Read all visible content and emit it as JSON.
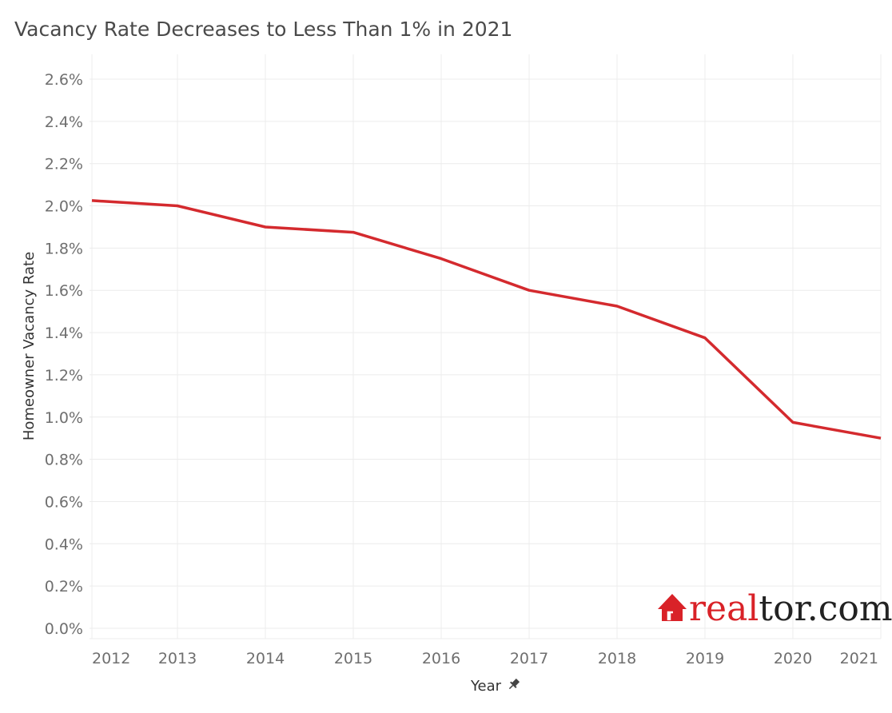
{
  "title": "Vacancy Rate Decreases to Less Than 1% in 2021",
  "brand": {
    "text_a": "real",
    "text_b": "tor.com",
    "accent": "#d92228",
    "dark": "#222222"
  },
  "colors": {
    "line": "#d42a2e",
    "grid": "#ececec",
    "tick": "#6f6f6f"
  },
  "chart_data": {
    "type": "line",
    "title": "Vacancy Rate Decreases to Less Than 1% in 2021",
    "xlabel": "Year",
    "ylabel": "Homeowner Vacancy Rate",
    "x": [
      "2012",
      "2013",
      "2014",
      "2015",
      "2016",
      "2017",
      "2018",
      "2019",
      "2020",
      "2021"
    ],
    "series": [
      {
        "values": [
          2.025,
          2.0,
          1.9,
          1.875,
          1.75,
          1.6,
          1.525,
          1.375,
          0.975,
          0.9
        ]
      }
    ],
    "y_ticks": [
      "0.0%",
      "0.2%",
      "0.4%",
      "0.6%",
      "0.8%",
      "1.0%",
      "1.2%",
      "1.4%",
      "1.6%",
      "1.8%",
      "2.0%",
      "2.2%",
      "2.4%",
      "2.6%"
    ],
    "ylim": [
      0,
      2.6
    ],
    "grid": true,
    "legend": "none"
  }
}
